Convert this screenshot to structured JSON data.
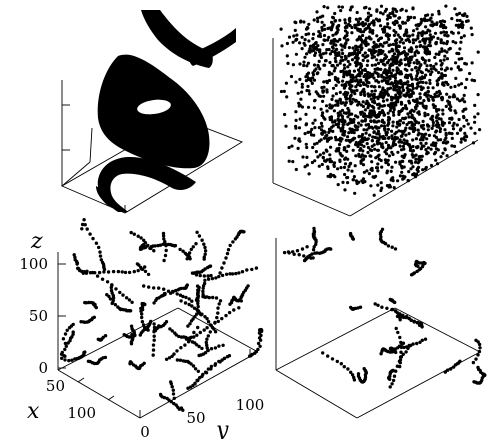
{
  "chart_data": [
    {
      "type": "scatter",
      "panel": "top-left",
      "title": "",
      "description_visible": "dense black torus-like cross-sections intersecting a tilted plane",
      "axes": {
        "x": "",
        "y": "",
        "z": ""
      }
    },
    {
      "type": "scatter",
      "panel": "top-right",
      "title": "",
      "point_count_approx": 2500,
      "axes": {
        "x": "",
        "y": "",
        "z": ""
      }
    },
    {
      "type": "scatter",
      "panel": "bottom-left",
      "title": "",
      "axes": {
        "x": {
          "label": "x",
          "ticks": [
            "50",
            "100"
          ],
          "range": [
            0,
            120
          ]
        },
        "y": {
          "label": "y",
          "ticks": [
            "0",
            "50",
            "100"
          ],
          "range": [
            0,
            120
          ]
        },
        "z": {
          "label": "z",
          "ticks": [
            "0",
            "50",
            "100"
          ],
          "range": [
            0,
            130
          ]
        }
      }
    },
    {
      "type": "scatter",
      "panel": "bottom-right",
      "title": "",
      "axes": {
        "x": "",
        "y": "",
        "z": ""
      }
    }
  ],
  "labels": {
    "z": "z",
    "x": "x",
    "y": "y",
    "z_ticks": [
      "100",
      "50",
      "0"
    ],
    "x_ticks": [
      "50",
      "100"
    ],
    "y_ticks": [
      "0",
      "50",
      "100"
    ]
  }
}
